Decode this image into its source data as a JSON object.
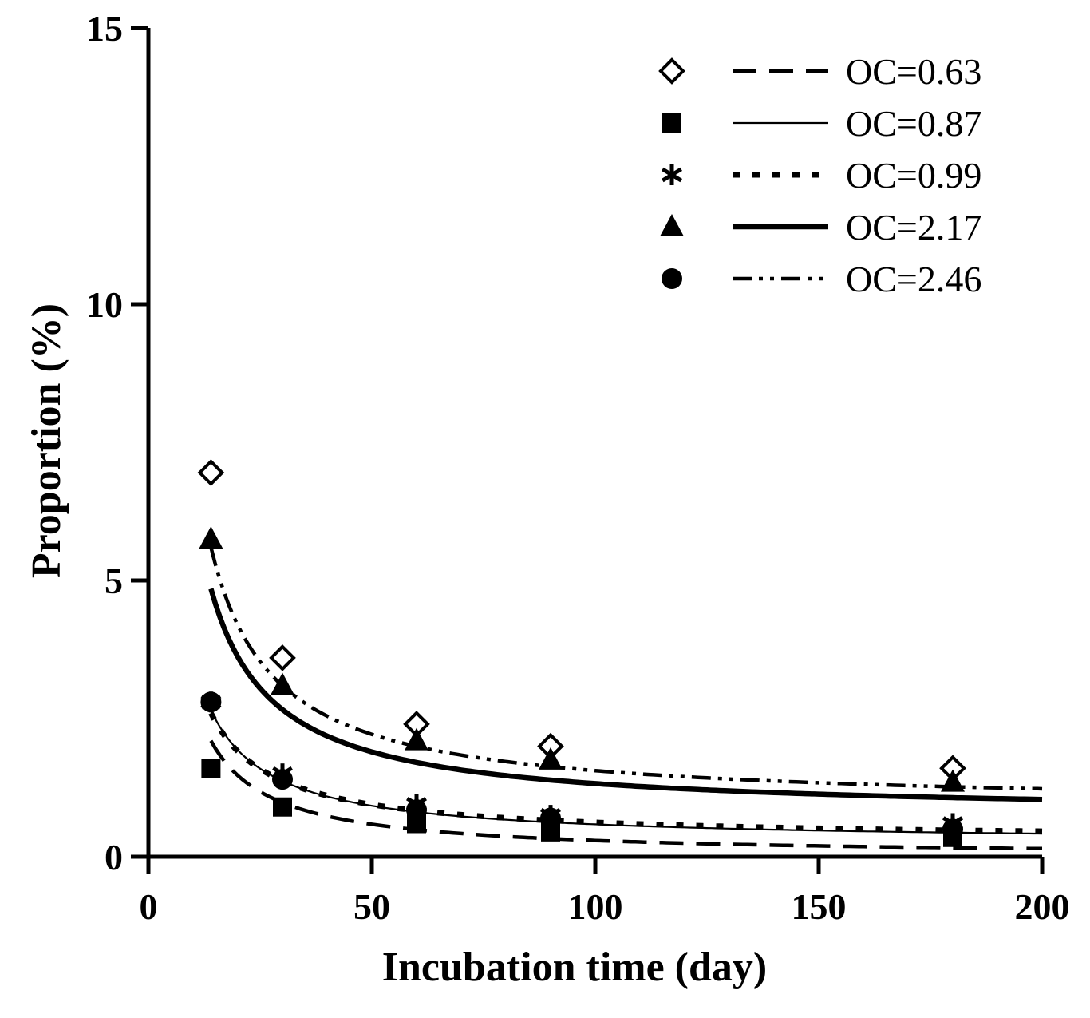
{
  "chart_data": {
    "type": "scatter",
    "title": "",
    "xlabel": "Incubation time (day)",
    "ylabel": "Proportion (%)",
    "xlim": [
      0,
      200
    ],
    "ylim": [
      0,
      15
    ],
    "xticks": [
      0,
      50,
      100,
      150,
      200
    ],
    "yticks": [
      0,
      5,
      10,
      15
    ],
    "xtick_labels": [
      "0",
      "50",
      "100",
      "150",
      "200"
    ],
    "ytick_labels": [
      "0",
      "5",
      "10",
      "15"
    ],
    "legend_position": "top-right",
    "x": [
      14,
      30,
      60,
      90,
      180
    ],
    "series": [
      {
        "name": "OC=0.63",
        "marker": "diamond-open",
        "line_style": "dash",
        "values": [
          6.95,
          3.6,
          2.4,
          2.0,
          1.6
        ],
        "fit": {
          "a": 2.1,
          "b": 0.0,
          "x_start": 14,
          "x_end": 200,
          "note": "y = a*14/x + b"
        }
      },
      {
        "name": "OC=0.87",
        "marker": "square-filled",
        "line_style": "thin-solid",
        "values": [
          1.6,
          0.9,
          0.6,
          0.45,
          0.35
        ],
        "fit": {
          "a": 2.4,
          "b": 0.25,
          "x_start": 14,
          "x_end": 200,
          "note": "y = a*14/x + b"
        }
      },
      {
        "name": "OC=0.99",
        "marker": "asterisk",
        "line_style": "dot",
        "values": [
          2.8,
          1.5,
          0.95,
          0.75,
          0.6
        ],
        "fit": {
          "a": 2.3,
          "b": 0.3,
          "x_start": 14,
          "x_end": 200,
          "note": "y = a*14/x + b"
        }
      },
      {
        "name": "OC=2.17",
        "marker": "triangle-filled",
        "line_style": "thick-solid",
        "values": [
          5.75,
          3.1,
          2.1,
          1.75,
          1.35
        ],
        "fit": {
          "a": 4.1,
          "b": 0.75,
          "x_start": 14,
          "x_end": 200,
          "note": "y = a*14/x + b"
        }
      },
      {
        "name": "OC=2.46",
        "marker": "circle-filled",
        "line_style": "dash-dot-dot",
        "values": [
          2.8,
          1.4,
          0.85,
          0.7,
          0.5
        ],
        "fit": {
          "a": 4.7,
          "b": 0.9,
          "x_start": 14,
          "x_end": 200,
          "note": "y = a*14/x + b"
        }
      }
    ]
  }
}
